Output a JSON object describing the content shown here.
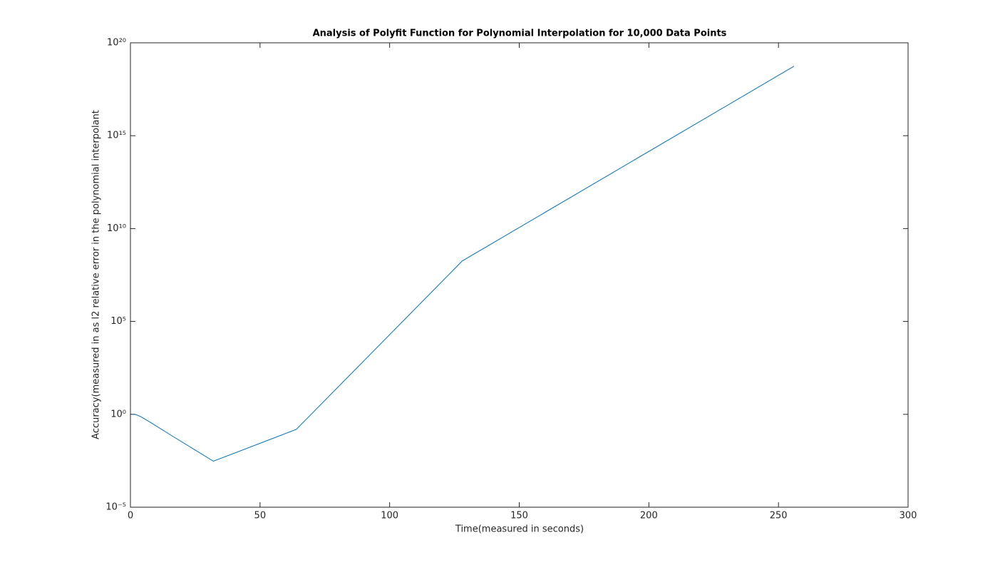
{
  "chart_data": {
    "type": "line",
    "title": "Analysis of Polyfit Function for Polynomial Interpolation for 10,000 Data Points",
    "x_label": "Time(measured in seconds)",
    "y_label": "Accuracy(measured in as l2 relative error in the polynomial interpolant",
    "y_scale": "log",
    "x": [
      1,
      2,
      4,
      8,
      16,
      32,
      64,
      128,
      256
    ],
    "series": [
      {
        "color": "#0072bd",
        "values": [
          1.0,
          0.98,
          0.75,
          0.35,
          0.07,
          0.003,
          0.155,
          180000000,
          5.5e+18
        ]
      }
    ],
    "xlim": [
      0,
      300
    ],
    "xticks": [
      0,
      50,
      100,
      150,
      200,
      250,
      300
    ],
    "ylim": [
      1e-05,
      1e+20
    ],
    "yticks": [
      {
        "value": 1e-05,
        "label": "10⁻⁵"
      },
      {
        "value": 1,
        "label": "10⁰"
      },
      {
        "value": 100000,
        "label": "10⁵"
      },
      {
        "value": 10000000000,
        "label": "10¹⁰"
      },
      {
        "value": 1000000000000000.0,
        "label": "10¹⁵"
      },
      {
        "value": 1e+20,
        "label": "10²⁰"
      }
    ],
    "grid": false
  }
}
